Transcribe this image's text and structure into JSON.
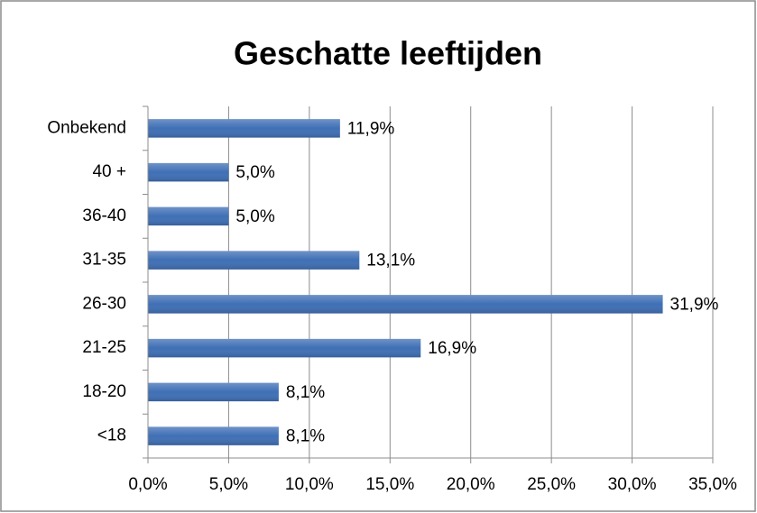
{
  "chart_data": {
    "type": "barh",
    "title": "Geschatte leeftijden",
    "categories": [
      "Onbekend",
      "40 +",
      "36-40",
      "31-35",
      "26-30",
      "21-25",
      "18-20",
      "<18"
    ],
    "values": [
      11.9,
      5.0,
      5.0,
      13.1,
      31.9,
      16.9,
      8.1,
      8.1
    ],
    "value_labels": [
      "11,9%",
      "5,0%",
      "5,0%",
      "13,1%",
      "31,9%",
      "16,9%",
      "8,1%",
      "8,1%"
    ],
    "color": "#3f6fb5",
    "xlim": [
      0,
      35
    ],
    "xticks": [
      {
        "value": 0,
        "label": "0,0%"
      },
      {
        "value": 5,
        "label": "5,0%"
      },
      {
        "value": 10,
        "label": "10,0%"
      },
      {
        "value": 15,
        "label": "15,0%"
      },
      {
        "value": 20,
        "label": "20,0%"
      },
      {
        "value": 25,
        "label": "25,0%"
      },
      {
        "value": 30,
        "label": "30,0%"
      },
      {
        "value": 35,
        "label": "35,0%"
      }
    ],
    "grid": true
  }
}
